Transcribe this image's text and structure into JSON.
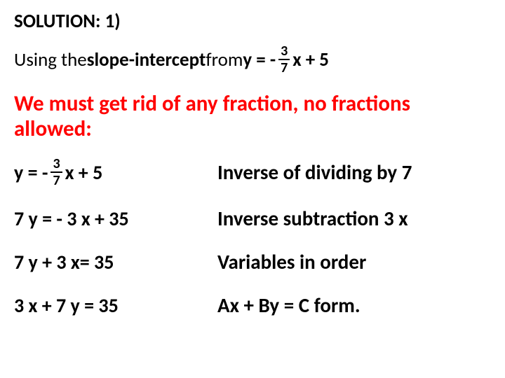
{
  "title": "SOLUTION: 1)",
  "intro": {
    "prefix": "Using the ",
    "emph": "slope-intercept",
    "mid": " from ",
    "eq_lhs": "y = - ",
    "frac_num": "3",
    "frac_den": "7",
    "eq_rhs": " x + 5"
  },
  "subtitle": "We must get rid of any fraction, no fractions allowed:",
  "steps": [
    {
      "left_type": "frac",
      "left_lhs": "y = - ",
      "left_num": "3",
      "left_den": "7",
      "left_rhs": " x + 5",
      "right": "Inverse of dividing by 7"
    },
    {
      "left_type": "plain",
      "left": "7 y = - 3 x + 35",
      "right": "Inverse subtraction  3 x"
    },
    {
      "left_type": "plain",
      "left": "7 y + 3 x= 35",
      "right": "Variables in order"
    },
    {
      "left_type": "plain",
      "left": "3 x + 7 y = 35",
      "right": "Ax + By = C form."
    }
  ],
  "colors": {
    "accent": "#ff0000",
    "text": "#000000",
    "bg": "#ffffff"
  }
}
